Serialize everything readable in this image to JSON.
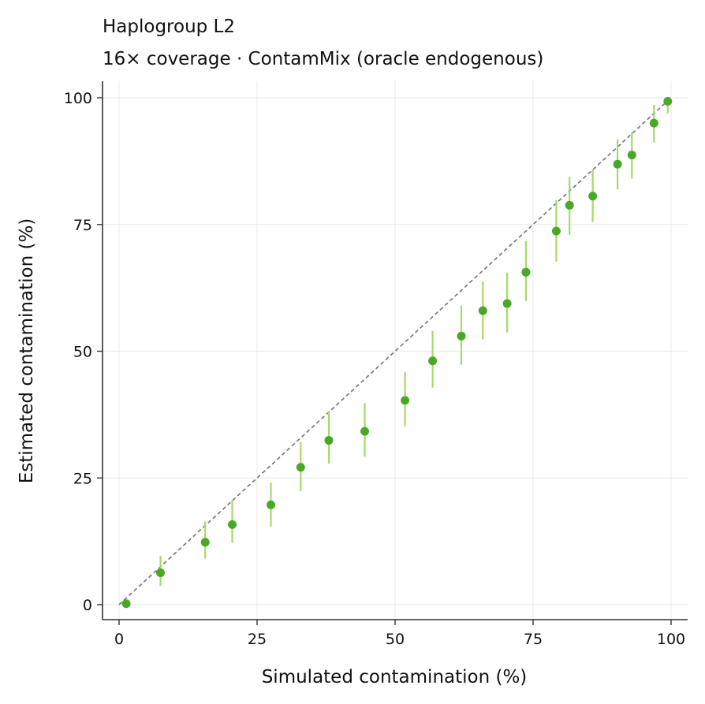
{
  "chart_data": {
    "type": "scatter",
    "title": "Haplogroup L2",
    "subtitle": "16× coverage  ·  ContamMix (oracle endogenous)",
    "xlabel": "Simulated contamination (%)",
    "ylabel": "Estimated contamination (%)",
    "xlim": [
      -2,
      103
    ],
    "ylim": [
      -3,
      103
    ],
    "xticks": [
      0,
      25,
      50,
      75,
      100
    ],
    "yticks": [
      0,
      25,
      50,
      75,
      100
    ],
    "grid": true,
    "reference_line": {
      "from": [
        0,
        0
      ],
      "to": [
        100,
        100
      ],
      "style": "dashed",
      "color": "#777777"
    },
    "colors": {
      "point": "#4aa828",
      "errorbar": "#a6d96a",
      "grid": "#ececec",
      "axis": "#333333"
    },
    "series": [
      {
        "points": [
          {
            "x": 1.3,
            "y": 0.2,
            "ylo": 0.0,
            "yhi": 0.4
          },
          {
            "x": 7.5,
            "y": 6.3,
            "ylo": 3.7,
            "yhi": 9.6
          },
          {
            "x": 15.6,
            "y": 12.3,
            "ylo": 9.1,
            "yhi": 16.4
          },
          {
            "x": 20.5,
            "y": 15.8,
            "ylo": 12.2,
            "yhi": 20.6
          },
          {
            "x": 27.5,
            "y": 19.7,
            "ylo": 15.4,
            "yhi": 24.1
          },
          {
            "x": 32.9,
            "y": 27.1,
            "ylo": 22.4,
            "yhi": 32.1
          },
          {
            "x": 38.0,
            "y": 32.4,
            "ylo": 27.8,
            "yhi": 38.2
          },
          {
            "x": 44.5,
            "y": 34.2,
            "ylo": 29.2,
            "yhi": 39.8
          },
          {
            "x": 51.8,
            "y": 40.3,
            "ylo": 35.1,
            "yhi": 45.9
          },
          {
            "x": 56.8,
            "y": 48.1,
            "ylo": 42.8,
            "yhi": 54.0
          },
          {
            "x": 62.0,
            "y": 53.0,
            "ylo": 47.3,
            "yhi": 59.0
          },
          {
            "x": 65.9,
            "y": 58.0,
            "ylo": 52.3,
            "yhi": 63.8
          },
          {
            "x": 70.3,
            "y": 59.4,
            "ylo": 53.7,
            "yhi": 65.5
          },
          {
            "x": 73.7,
            "y": 65.6,
            "ylo": 59.9,
            "yhi": 71.8
          },
          {
            "x": 79.2,
            "y": 73.7,
            "ylo": 67.7,
            "yhi": 79.8
          },
          {
            "x": 81.6,
            "y": 78.8,
            "ylo": 73.0,
            "yhi": 84.4
          },
          {
            "x": 85.8,
            "y": 80.6,
            "ylo": 75.5,
            "yhi": 85.8
          },
          {
            "x": 90.3,
            "y": 86.9,
            "ylo": 81.9,
            "yhi": 91.8
          },
          {
            "x": 92.9,
            "y": 88.7,
            "ylo": 84.0,
            "yhi": 93.2
          },
          {
            "x": 96.9,
            "y": 95.0,
            "ylo": 91.2,
            "yhi": 98.6
          },
          {
            "x": 99.4,
            "y": 99.3,
            "ylo": 96.9,
            "yhi": 100.0
          }
        ]
      }
    ]
  }
}
